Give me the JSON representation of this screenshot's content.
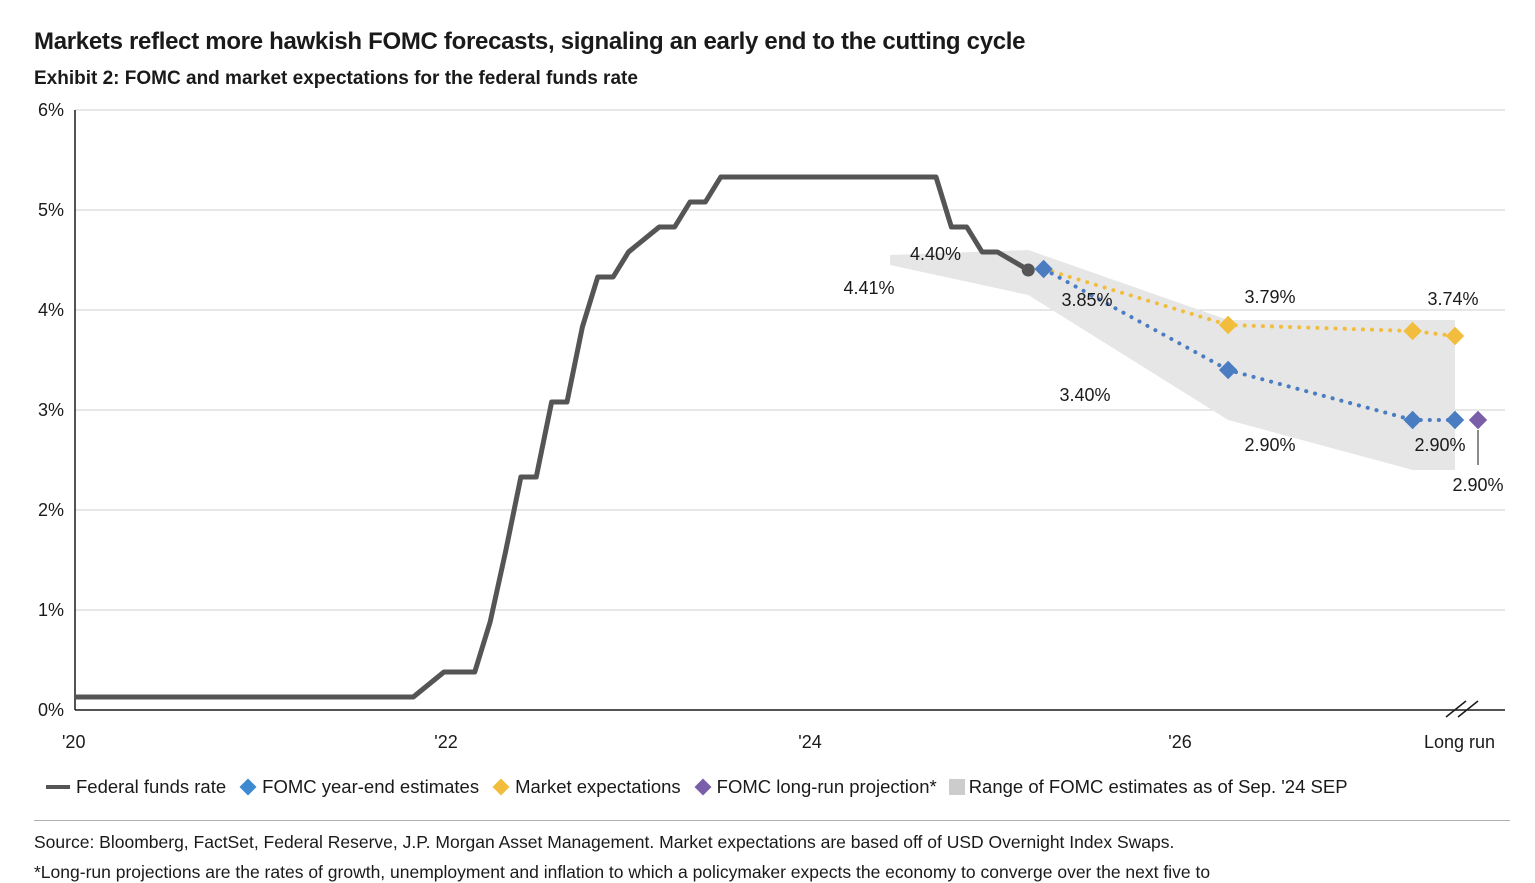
{
  "header": {
    "title": "Markets reflect more hawkish FOMC forecasts, signaling an early end to the cutting cycle",
    "subtitle": "Exhibit 2:  FOMC and market expectations for the federal funds rate"
  },
  "colors": {
    "fed_funds": "#555555",
    "fomc": "#4a7cc2",
    "market": "#f2bd3c",
    "longrun": "#7b5ea8",
    "range": "#e6e6e6",
    "grid": "#cfcfcf"
  },
  "chart_data": {
    "type": "line",
    "title": "Markets reflect more hawkish FOMC forecasts, signaling an early end to the cutting cycle",
    "subtitle": "Exhibit 2:  FOMC and market expectations for the federal funds rate",
    "xlabel": "",
    "ylabel": "",
    "ylim": [
      0,
      6
    ],
    "y_ticks": [
      "0%",
      "1%",
      "2%",
      "3%",
      "4%",
      "5%",
      "6%"
    ],
    "x_ticks": [
      "'20",
      "'22",
      "'24",
      "'26",
      "Long run"
    ],
    "grid": true,
    "legend_position": "bottom",
    "series": [
      {
        "name": "Federal funds rate",
        "style": "solid",
        "points": [
          [
            "2020-01",
            0.13
          ],
          [
            "2021-11",
            0.13
          ],
          [
            "2022-01",
            0.38
          ],
          [
            "2022-03",
            0.38
          ],
          [
            "2022-04",
            0.88
          ],
          [
            "2022-05",
            1.58
          ],
          [
            "2022-06",
            2.33
          ],
          [
            "2022-07",
            2.33
          ],
          [
            "2022-08",
            3.08
          ],
          [
            "2022-09",
            3.08
          ],
          [
            "2022-10",
            3.83
          ],
          [
            "2022-11",
            4.33
          ],
          [
            "2022-12",
            4.33
          ],
          [
            "2023-01",
            4.58
          ],
          [
            "2023-03",
            4.83
          ],
          [
            "2023-04",
            4.83
          ],
          [
            "2023-05",
            5.08
          ],
          [
            "2023-06",
            5.08
          ],
          [
            "2023-07",
            5.33
          ],
          [
            "2024-09",
            5.33
          ],
          [
            "2024-10",
            4.83
          ],
          [
            "2024-11",
            4.83
          ],
          [
            "2024-12",
            4.58
          ],
          [
            "2025-01",
            4.58
          ],
          [
            "2025-03",
            4.4
          ]
        ],
        "end_label": "4.40%"
      },
      {
        "name": "FOMC year-end estimates",
        "style": "dotted",
        "points": [
          [
            "2025-04",
            4.41
          ],
          [
            "2026-04",
            3.4
          ],
          [
            "2027-04",
            2.9
          ],
          [
            "Long run",
            2.9
          ]
        ],
        "labels": [
          "4.41%",
          "3.40%",
          "2.90%",
          "2.90%"
        ]
      },
      {
        "name": "Market expectations",
        "style": "dotted",
        "points": [
          [
            "2025-04",
            4.41
          ],
          [
            "2026-04",
            3.85
          ],
          [
            "2027-04",
            3.79
          ],
          [
            "Long run",
            3.74
          ]
        ],
        "labels": [
          "3.85%",
          "3.79%",
          "3.74%"
        ]
      },
      {
        "name": "FOMC long-run projection*",
        "style": "marker",
        "points": [
          [
            "Long run",
            2.9
          ]
        ],
        "labels": [
          "2.90%"
        ]
      },
      {
        "name": "Range of FOMC estimates as of Sep. '24 SEP",
        "style": "band",
        "upper": [
          [
            "2025-03",
            4.6
          ],
          [
            "2026-04",
            3.9
          ],
          [
            "2027-04",
            3.9
          ],
          [
            "Long run",
            3.9
          ]
        ],
        "lower": [
          [
            "2025-03",
            4.15
          ],
          [
            "2026-04",
            2.9
          ],
          [
            "2027-04",
            2.4
          ],
          [
            "Long run",
            2.4
          ]
        ]
      }
    ]
  },
  "legend": {
    "items": [
      "Federal funds rate",
      "FOMC year-end estimates",
      "Market expectations",
      "FOMC long-run projection*",
      "Range of FOMC estimates as of Sep. '24 SEP"
    ]
  },
  "footer": {
    "source": "Source: Bloomberg, FactSet, Federal Reserve, J.P. Morgan Asset Management. Market expectations are based off of USD Overnight Index Swaps.",
    "footnote": "*Long-run projections are the rates of growth, unemployment and inflation to which a policymaker expects the economy to converge over the next five to"
  }
}
